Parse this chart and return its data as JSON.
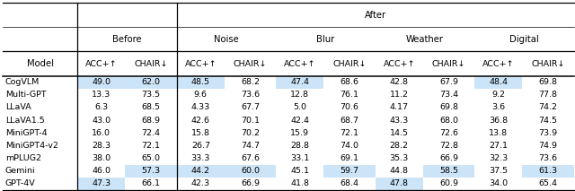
{
  "models": [
    "CogVLM",
    "Multi-GPT",
    "LLaVA",
    "LLaVA1.5",
    "MiniGPT-4",
    "MiniGPT4-v2",
    "mPLUG2",
    "Gemini",
    "GPT-4V"
  ],
  "sections": [
    "before",
    "noise",
    "blur",
    "weather",
    "digital"
  ],
  "section_labels": [
    "Before",
    "Noise",
    "Blur",
    "Weather",
    "Digital"
  ],
  "after_label": "After",
  "columns": {
    "before": {
      "ACC+": [
        49.0,
        13.3,
        6.3,
        43.0,
        16.0,
        28.3,
        38.0,
        46.0,
        47.3
      ],
      "CHAIR": [
        62.0,
        73.5,
        68.5,
        68.9,
        72.4,
        72.1,
        65.0,
        57.3,
        66.1
      ]
    },
    "noise": {
      "ACC+": [
        48.5,
        9.6,
        4.33,
        42.6,
        15.8,
        26.7,
        33.3,
        44.2,
        42.3
      ],
      "CHAIR": [
        68.2,
        73.6,
        67.7,
        70.1,
        70.2,
        74.7,
        67.6,
        60.0,
        66.9
      ]
    },
    "blur": {
      "ACC+": [
        47.4,
        12.8,
        5.0,
        42.4,
        15.9,
        28.8,
        33.1,
        45.1,
        41.8
      ],
      "CHAIR": [
        68.6,
        76.1,
        70.6,
        68.7,
        72.1,
        74.0,
        69.1,
        59.7,
        68.4
      ]
    },
    "weather": {
      "ACC+": [
        42.8,
        11.2,
        4.17,
        43.3,
        14.5,
        28.2,
        35.3,
        44.8,
        47.8
      ],
      "CHAIR": [
        67.9,
        73.4,
        69.8,
        68.0,
        72.6,
        72.8,
        66.9,
        58.5,
        60.9
      ]
    },
    "digital": {
      "ACC+": [
        48.4,
        9.2,
        3.6,
        36.8,
        13.8,
        27.1,
        32.3,
        37.5,
        34.0
      ],
      "CHAIR": [
        69.8,
        77.8,
        74.2,
        74.5,
        73.9,
        74.9,
        73.6,
        61.3,
        65.4
      ]
    }
  },
  "highlight_color": "#cce4f7",
  "bg_color": "#ffffff",
  "font_size": 6.8,
  "header_font_size": 7.2,
  "highlight_map": {
    "0": [
      1,
      2,
      3,
      5,
      9
    ],
    "7": [
      2,
      3,
      4,
      6,
      8,
      10
    ],
    "8": [
      1,
      7
    ]
  }
}
